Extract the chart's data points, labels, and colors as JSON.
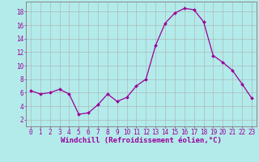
{
  "x": [
    0,
    1,
    2,
    3,
    4,
    5,
    6,
    7,
    8,
    9,
    10,
    11,
    12,
    13,
    14,
    15,
    16,
    17,
    18,
    19,
    20,
    21,
    22,
    23
  ],
  "y": [
    6.3,
    5.8,
    6.0,
    6.5,
    5.8,
    2.8,
    3.0,
    4.2,
    5.8,
    4.7,
    5.3,
    7.0,
    8.0,
    13.0,
    16.3,
    17.8,
    18.5,
    18.3,
    16.5,
    11.5,
    10.5,
    9.3,
    7.3,
    5.2
  ],
  "line_color": "#990099",
  "marker": "D",
  "marker_size": 2.0,
  "linewidth": 0.9,
  "background_color": "#b3eaea",
  "grid_color": "#aaaaaa",
  "xlabel": "Windchill (Refroidissement éolien,°C)",
  "xlabel_fontsize": 6.5,
  "xlabel_color": "#990099",
  "ytick_labels": [
    "2",
    "4",
    "6",
    "8",
    "10",
    "12",
    "14",
    "16",
    "18"
  ],
  "ytick_vals": [
    2,
    4,
    6,
    8,
    10,
    12,
    14,
    16,
    18
  ],
  "xticks": [
    0,
    1,
    2,
    3,
    4,
    5,
    6,
    7,
    8,
    9,
    10,
    11,
    12,
    13,
    14,
    15,
    16,
    17,
    18,
    19,
    20,
    21,
    22,
    23
  ],
  "tick_color": "#990099",
  "tick_fontsize": 5.5,
  "xlim": [
    -0.5,
    23.5
  ],
  "ylim": [
    1.0,
    19.5
  ],
  "spine_color": "#888888"
}
